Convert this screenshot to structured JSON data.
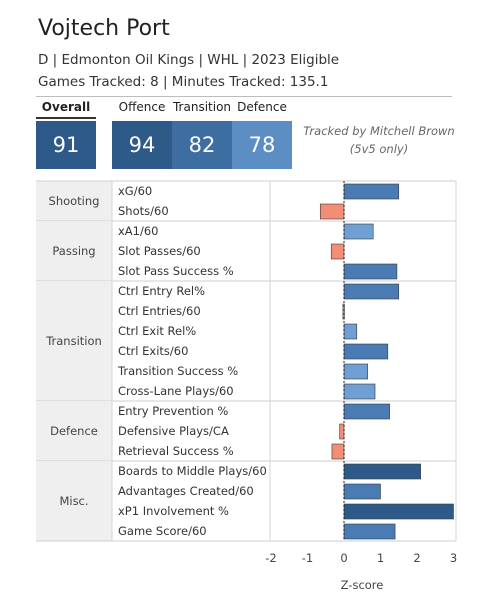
{
  "header": {
    "player_name": "Vojtech Port",
    "subtitle_1": "D | Edmonton Oil Kings | WHL | 2023 Eligible",
    "subtitle_2": "Games Tracked: 8 | Minutes Tracked: 135.1"
  },
  "scores": {
    "overall": {
      "label": "Overall",
      "value": "91",
      "color": "#2e5a8a"
    },
    "offence": {
      "label": "Offence",
      "value": "94",
      "color": "#2e5a8a"
    },
    "transition": {
      "label": "Transition",
      "value": "82",
      "color": "#3d6da1"
    },
    "defence": {
      "label": "Defence",
      "value": "78",
      "color": "#5c8ec4"
    }
  },
  "credit": {
    "line1": "Tracked by Mitchell Brown",
    "line2": "(5v5 only)"
  },
  "colors": {
    "negative": "#f28e76",
    "positive_dark": "#2e5a8a",
    "positive_mid": "#4a7bb5",
    "positive_light": "#6f9fd3"
  },
  "chart_data": {
    "type": "bar",
    "orientation": "horizontal",
    "xlabel": "Z-score",
    "xlim": [
      -2,
      3
    ],
    "xticks": [
      -2,
      -1,
      0,
      1,
      2,
      3
    ],
    "groups": [
      {
        "category": "Shooting",
        "metrics": [
          {
            "name": "xG/60",
            "value": 1.5
          },
          {
            "name": "Shots/60",
            "value": -0.65
          }
        ]
      },
      {
        "category": "Passing",
        "metrics": [
          {
            "name": "xA1/60",
            "value": 0.8
          },
          {
            "name": "Slot Passes/60",
            "value": -0.35
          },
          {
            "name": "Slot Pass Success %",
            "value": 1.45
          }
        ]
      },
      {
        "category": "Transition",
        "metrics": [
          {
            "name": "Ctrl Entry Rel%",
            "value": 1.5
          },
          {
            "name": "Ctrl Entries/60",
            "value": -0.03
          },
          {
            "name": "Ctrl Exit Rel%",
            "value": 0.35
          },
          {
            "name": "Ctrl Exits/60",
            "value": 1.2
          },
          {
            "name": "Transition Success %",
            "value": 0.65
          },
          {
            "name": "Cross-Lane Plays/60",
            "value": 0.85
          }
        ]
      },
      {
        "category": "Defence",
        "metrics": [
          {
            "name": "Entry Prevention %",
            "value": 1.25
          },
          {
            "name": "Defensive Plays/CA",
            "value": -0.12
          },
          {
            "name": "Retrieval Success %",
            "value": -0.33
          }
        ]
      },
      {
        "category": "Misc.",
        "metrics": [
          {
            "name": "Boards to Middle Plays/60",
            "value": 2.1
          },
          {
            "name": "Advantages Created/60",
            "value": 1.0
          },
          {
            "name": "xP1 Involvement %",
            "value": 3.0
          },
          {
            "name": "Game Score/60",
            "value": 1.4
          }
        ]
      }
    ]
  }
}
